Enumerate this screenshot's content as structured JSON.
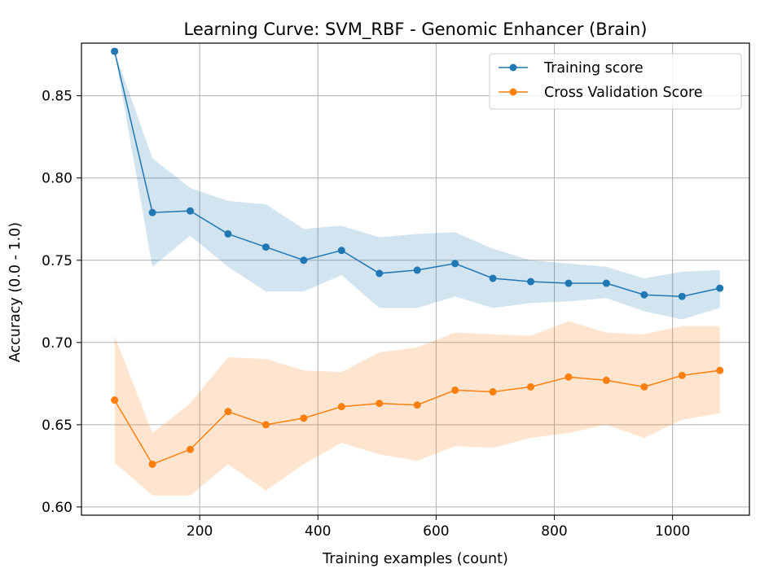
{
  "chart_data": {
    "type": "line",
    "title": "Learning Curve: SVM_RBF - Genomic Enhancer (Brain)",
    "xlabel": "Training examples (count)",
    "ylabel": "Accuracy (0.0 - 1.0)",
    "xlim": [
      0,
      1130
    ],
    "ylim": [
      0.595,
      0.882
    ],
    "xticks": [
      200,
      400,
      600,
      800,
      1000
    ],
    "yticks": [
      0.6,
      0.65,
      0.7,
      0.75,
      0.8,
      0.85
    ],
    "ytick_labels": [
      "0.60",
      "0.65",
      "0.70",
      "0.75",
      "0.80",
      "0.85"
    ],
    "grid": true,
    "legend_position": "top-right",
    "x": [
      56,
      120,
      184,
      248,
      312,
      376,
      440,
      504,
      568,
      632,
      696,
      760,
      824,
      888,
      952,
      1016,
      1080
    ],
    "series": [
      {
        "name": "Training score",
        "color": "#1f77b4",
        "values": [
          0.877,
          0.779,
          0.78,
          0.766,
          0.758,
          0.75,
          0.756,
          0.742,
          0.744,
          0.748,
          0.739,
          0.737,
          0.736,
          0.736,
          0.729,
          0.728,
          0.733
        ],
        "band_upper": [
          0.877,
          0.812,
          0.794,
          0.786,
          0.784,
          0.769,
          0.771,
          0.764,
          0.766,
          0.767,
          0.757,
          0.75,
          0.748,
          0.746,
          0.739,
          0.743,
          0.744
        ],
        "band_lower": [
          0.877,
          0.746,
          0.765,
          0.746,
          0.731,
          0.731,
          0.741,
          0.721,
          0.721,
          0.728,
          0.721,
          0.724,
          0.725,
          0.727,
          0.719,
          0.714,
          0.721
        ]
      },
      {
        "name": "Cross Validation Score",
        "color": "#ff7f0e",
        "values": [
          0.665,
          0.626,
          0.635,
          0.658,
          0.65,
          0.654,
          0.661,
          0.663,
          0.662,
          0.671,
          0.67,
          0.673,
          0.679,
          0.677,
          0.673,
          0.68,
          0.683
        ],
        "band_upper": [
          0.704,
          0.645,
          0.663,
          0.691,
          0.69,
          0.683,
          0.682,
          0.694,
          0.697,
          0.706,
          0.705,
          0.704,
          0.713,
          0.706,
          0.705,
          0.71,
          0.71
        ],
        "band_lower": [
          0.627,
          0.607,
          0.607,
          0.626,
          0.61,
          0.626,
          0.639,
          0.632,
          0.628,
          0.637,
          0.636,
          0.642,
          0.645,
          0.65,
          0.642,
          0.653,
          0.657
        ]
      }
    ]
  }
}
